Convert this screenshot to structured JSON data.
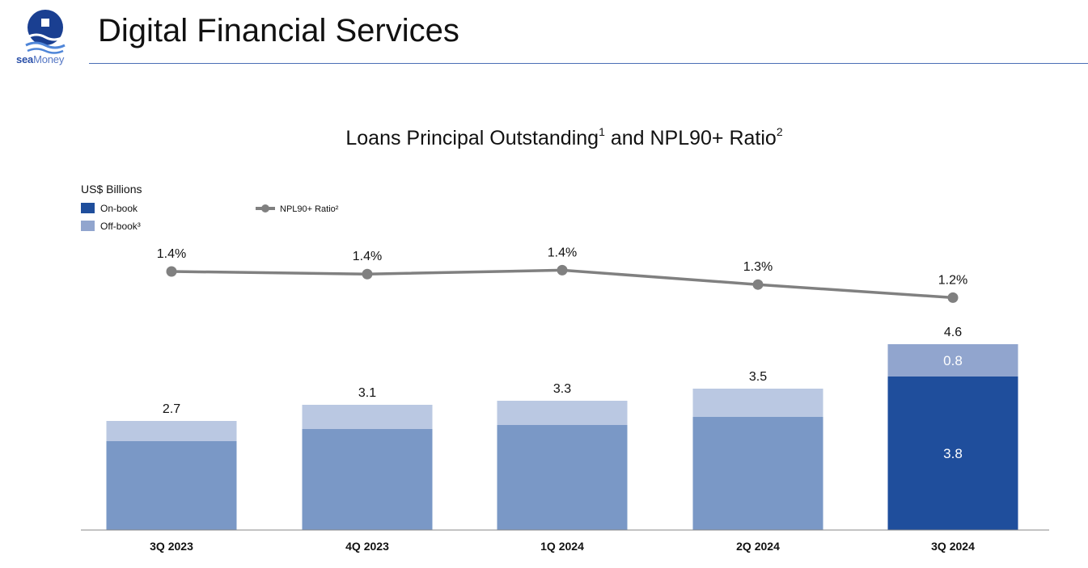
{
  "header": {
    "logo": {
      "text_bold": "sea",
      "text_light": "Money"
    },
    "title": "Digital Financial Services"
  },
  "chart_data": {
    "type": "bar",
    "stacked": true,
    "title": "Loans Principal Outstanding",
    "title_superscript": "1",
    "title_suffix": " and NPL90+ Ratio",
    "title_suffix_superscript": "2",
    "unit_label": "US$ Billions",
    "categories": [
      "3Q 2023",
      "4Q 2023",
      "1Q 2024",
      "2Q 2024",
      "3Q 2024"
    ],
    "series": [
      {
        "name": "On-book",
        "values": [
          2.2,
          2.5,
          2.6,
          2.8,
          3.8
        ],
        "color": "#1f4e9c",
        "faded_color": "#7a98c6"
      },
      {
        "name": "Off-book³",
        "values": [
          0.5,
          0.6,
          0.6,
          0.7,
          0.8
        ],
        "color": "#91a5ce",
        "faded_color": "#bac8e2"
      }
    ],
    "totals": [
      "2.7",
      "3.1",
      "3.3",
      "3.5",
      "4.6"
    ],
    "segment_labels_3q2024": {
      "on_book": "3.8",
      "off_book": "0.8"
    },
    "line_series": {
      "name": "NPL90+ Ratio²",
      "values": [
        1.4,
        1.38,
        1.41,
        1.3,
        1.2
      ],
      "labels": [
        "1.4%",
        "1.4%",
        "1.4%",
        "1.3%",
        "1.2%"
      ],
      "color": "#808080"
    },
    "highlight_index": 4,
    "legend_position": "top-left"
  }
}
